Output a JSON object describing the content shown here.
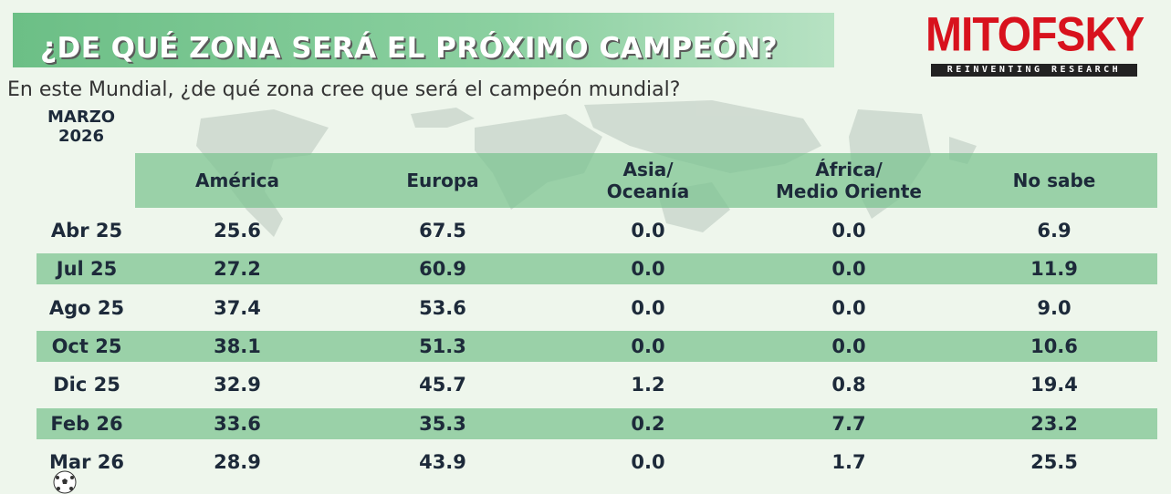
{
  "header": {
    "title": "¿DE QUÉ ZONA SERÁ EL PRÓXIMO CAMPEÓN?",
    "logo_name": "MITOFSKY",
    "logo_tagline": "REINVENTING RESEARCH"
  },
  "question": "En este Mundial, ¿de qué zona cree que será el campeón mundial?",
  "period": {
    "line1": "MARZO",
    "line2": "2026"
  },
  "colors": {
    "accent_green": "#7dc492",
    "logo_red": "#d8121d",
    "text_dark": "#1d2a3a"
  },
  "icons": [
    "world-map-icon",
    "soccer-ball-icon"
  ],
  "chart_data": {
    "type": "table",
    "columns": [
      "",
      "América",
      "Europa",
      "Asia/\nOceanía",
      "África/\nMedio Oriente",
      "No sabe"
    ],
    "column_labels": [
      {
        "line1": "América",
        "line2": ""
      },
      {
        "line1": "Europa",
        "line2": ""
      },
      {
        "line1": "Asia/",
        "line2": "Oceanía"
      },
      {
        "line1": "África/",
        "line2": "Medio Oriente"
      },
      {
        "line1": "No sabe",
        "line2": ""
      }
    ],
    "rows": [
      {
        "label": "Abr 25",
        "values": [
          "25.6",
          "67.5",
          "0.0",
          "0.0",
          "6.9"
        ]
      },
      {
        "label": "Jul 25",
        "values": [
          "27.2",
          "60.9",
          "0.0",
          "0.0",
          "11.9"
        ]
      },
      {
        "label": "Ago 25",
        "values": [
          "37.4",
          "53.6",
          "0.0",
          "0.0",
          "9.0"
        ]
      },
      {
        "label": "Oct 25",
        "values": [
          "38.1",
          "51.3",
          "0.0",
          "0.0",
          "10.6"
        ]
      },
      {
        "label": "Dic 25",
        "values": [
          "32.9",
          "45.7",
          "1.2",
          "0.8",
          "19.4"
        ]
      },
      {
        "label": "Feb 26",
        "values": [
          "33.6",
          "35.3",
          "0.2",
          "7.7",
          "23.2"
        ]
      },
      {
        "label": "Mar 26",
        "values": [
          "28.9",
          "43.9",
          "0.0",
          "1.7",
          "25.5"
        ]
      }
    ]
  }
}
